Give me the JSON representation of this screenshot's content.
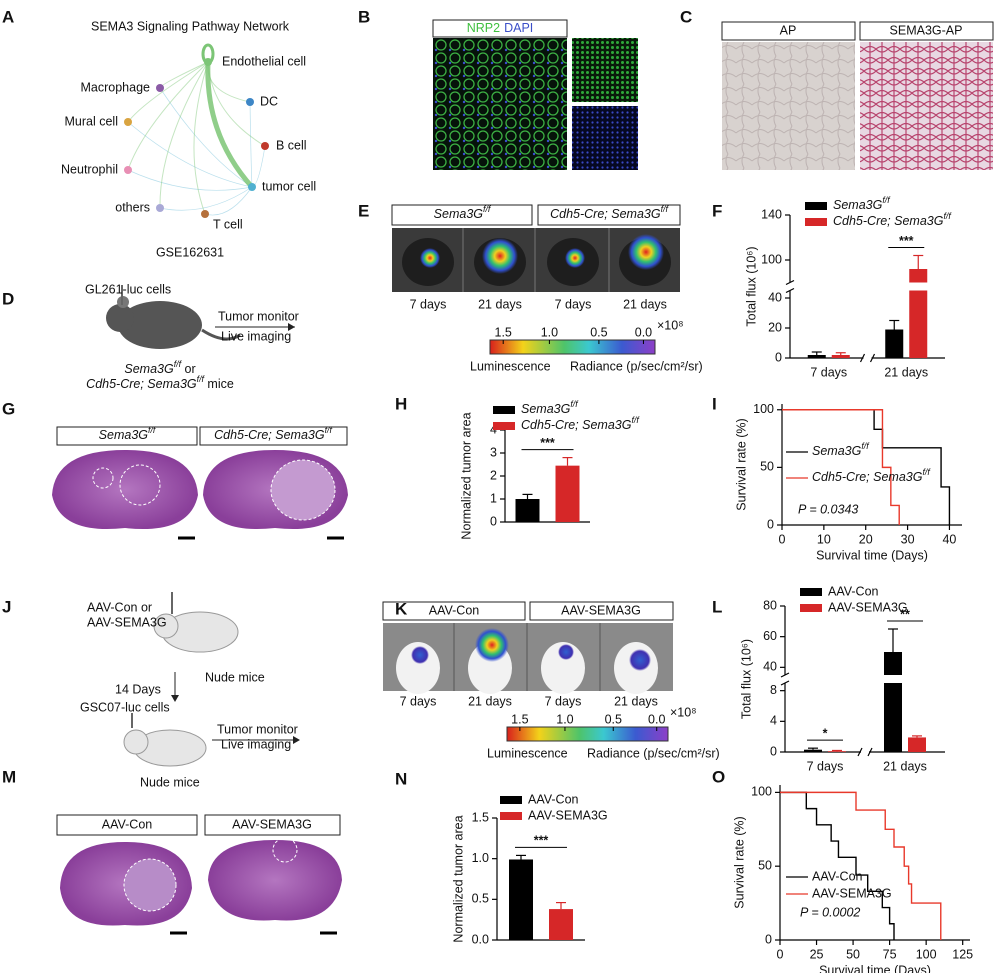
{
  "letters": [
    "A",
    "B",
    "C",
    "D",
    "E",
    "F",
    "G",
    "H",
    "I",
    "J",
    "K",
    "L",
    "M",
    "N",
    "O"
  ],
  "A": {
    "title": "SEMA3 Signaling Pathway Network",
    "nodes": [
      {
        "label": "Macrophage",
        "color": "#8b5ba6"
      },
      {
        "label": "Endothelial cell",
        "color": "#7cc576"
      },
      {
        "label": "DC",
        "color": "#3d86c6"
      },
      {
        "label": "Mural cell",
        "color": "#d9a441"
      },
      {
        "label": "B cell",
        "color": "#c0392b"
      },
      {
        "label": "Neutrophil",
        "color": "#e88fb4"
      },
      {
        "label": "tumor cell",
        "color": "#4fb0d0"
      },
      {
        "label": "others",
        "color": "#a9a9d6"
      },
      {
        "label": "T cell",
        "color": "#b5703b"
      }
    ],
    "caption": "GSE162631"
  },
  "B": {
    "stains": [
      {
        "text": "NRP2",
        "color": "#3fbf3f"
      },
      {
        "text": "DAPI",
        "color": "#3b4fc8"
      }
    ]
  },
  "C": {
    "labels": [
      "AP",
      "SEMA3G-AP"
    ]
  },
  "D": {
    "cells": "GL261-luc cells",
    "steps": [
      "Tumor monitor",
      "Live imaging"
    ],
    "joiner": " or",
    "mice": " mice"
  },
  "days": [
    "7 days",
    "21 days"
  ],
  "colorbar": {
    "ticks": [
      "1.5",
      "1.0",
      "0.5",
      "0.0"
    ],
    "unit": "×10⁸",
    "left": "Luminescence",
    "right": "Radiance (p/sec/cm²/sr)"
  },
  "J": {
    "vectors": [
      "AAV-Con or",
      "AAV-SEMA3G"
    ],
    "mice": "Nude mice",
    "interval": "14 Days",
    "cells": "GSC07-luc cells",
    "steps": [
      "Tumor monitor",
      "Live imaging"
    ]
  },
  "chart_data": [
    {
      "type": "bar",
      "ylabel": "Total flux (10⁶)",
      "categories": [
        "7 days",
        "21 days"
      ],
      "series": [
        {
          "name": "Sema3G",
          "name_sup": "f/f",
          "color": "#000000",
          "values": [
            2,
            19
          ],
          "errors": [
            2,
            6
          ]
        },
        {
          "name": "Cdh5-Cre; Sema3G",
          "name_sup": "f/f",
          "color": "#d62728",
          "values": [
            2,
            92
          ],
          "errors": [
            1.5,
            12
          ]
        }
      ],
      "ylim": [
        0,
        140
      ],
      "ybreak": [
        45,
        80
      ],
      "yticks": [
        0,
        20,
        40,
        100,
        140
      ],
      "significance": [
        null,
        "***"
      ]
    },
    {
      "type": "bar",
      "ylabel": "Normalized tumor area",
      "categories": [
        null
      ],
      "series": [
        {
          "name": "Sema3G",
          "name_sup": "f/f",
          "color": "#000000",
          "values": [
            1.0
          ],
          "errors": [
            0.2
          ]
        },
        {
          "name": "Cdh5-Cre; Sema3G",
          "name_sup": "f/f",
          "color": "#d62728",
          "values": [
            2.45
          ],
          "errors": [
            0.35
          ]
        }
      ],
      "ylim": [
        0,
        4
      ],
      "yticks": [
        0,
        1,
        2,
        3,
        4
      ],
      "significance": [
        "***"
      ]
    },
    {
      "type": "line",
      "step": true,
      "ylabel": "Survival rate (%)",
      "xlabel": "Survival time (Days)",
      "series": [
        {
          "name": "Sema3G",
          "name_sup": "f/f",
          "color": "#000000",
          "x": [
            0,
            22,
            24,
            38,
            40
          ],
          "values": [
            100,
            83,
            67,
            33,
            0
          ]
        },
        {
          "name": "Cdh5-Cre; Sema3G",
          "name_sup": "f/f",
          "color": "#e8392b",
          "x": [
            0,
            24,
            26,
            28
          ],
          "values": [
            100,
            50,
            17,
            0
          ]
        }
      ],
      "xlim": [
        0,
        43
      ],
      "xticks": [
        0,
        10,
        20,
        30,
        40
      ],
      "ylim": [
        0,
        105
      ],
      "yticks": [
        0,
        50,
        100
      ],
      "annotation": "P = 0.0343"
    },
    {
      "type": "bar",
      "ylabel": "Total flux (10⁶)",
      "categories": [
        "7 days",
        "21 days"
      ],
      "series": [
        {
          "name": "AAV-Con",
          "color": "#000000",
          "values": [
            0.3,
            50
          ],
          "errors": [
            0.2,
            15
          ]
        },
        {
          "name": "AAV-SEMA3G",
          "color": "#d62728",
          "values": [
            0.1,
            1.9
          ],
          "errors": [
            0.1,
            0.2
          ]
        }
      ],
      "ylim": [
        0,
        80
      ],
      "ybreak": [
        9,
        35
      ],
      "yticks": [
        0,
        4,
        8,
        40,
        60,
        80
      ],
      "significance": [
        "*",
        "**"
      ]
    },
    {
      "type": "bar",
      "ylabel": "Normalized tumor area",
      "categories": [
        null
      ],
      "series": [
        {
          "name": "AAV-Con",
          "color": "#000000",
          "values": [
            0.99
          ],
          "errors": [
            0.05
          ]
        },
        {
          "name": "AAV-SEMA3G",
          "color": "#d62728",
          "values": [
            0.38
          ],
          "errors": [
            0.08
          ]
        }
      ],
      "ylim": [
        0,
        1.5
      ],
      "yticks": [
        {
          "value": 0,
          "label": "0.0"
        },
        {
          "value": 0.5,
          "label": "0.5"
        },
        {
          "value": 1,
          "label": "1.0"
        },
        {
          "value": 1.5,
          "label": "1.5"
        }
      ],
      "significance": [
        "***"
      ]
    },
    {
      "type": "line",
      "step": true,
      "ylabel": "Survival rate (%)",
      "xlabel": "Survival time (Days)",
      "series": [
        {
          "name": "AAV-Con",
          "color": "#000000",
          "x": [
            0,
            18,
            25,
            35,
            40,
            52,
            60,
            70,
            75,
            78
          ],
          "values": [
            100,
            89,
            78,
            67,
            56,
            44,
            33,
            22,
            11,
            0
          ]
        },
        {
          "name": "AAV-SEMA3G",
          "color": "#e8392b",
          "x": [
            0,
            52,
            72,
            78,
            85,
            88,
            90,
            110
          ],
          "values": [
            100,
            88,
            75,
            63,
            50,
            38,
            25,
            0
          ]
        }
      ],
      "xlim": [
        0,
        130
      ],
      "xticks": [
        0,
        25,
        50,
        75,
        100,
        125
      ],
      "ylim": [
        0,
        105
      ],
      "yticks": [
        0,
        50,
        100
      ],
      "annotation": "P = 0.0002"
    }
  ]
}
